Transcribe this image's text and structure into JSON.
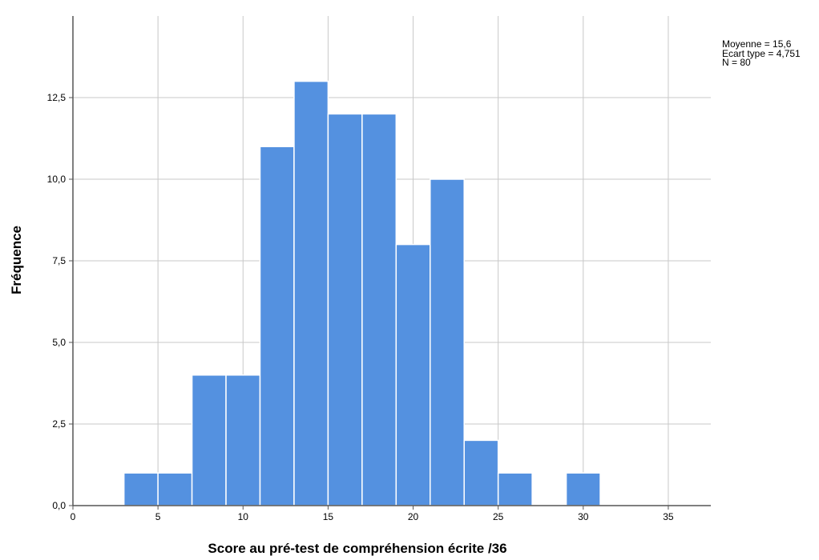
{
  "chart_data": {
    "type": "bar",
    "subtype": "histogram",
    "xlabel": "Score au pré-test de compréhension écrite /36",
    "ylabel": "Fréquence",
    "xlim": [
      0,
      37.5
    ],
    "ylim": [
      0,
      15
    ],
    "x_ticks": [
      0,
      5,
      10,
      15,
      20,
      25,
      30,
      35
    ],
    "x_tick_labels": [
      "0",
      "5",
      "10",
      "15",
      "20",
      "25",
      "30",
      "35"
    ],
    "y_ticks": [
      0,
      2.5,
      5,
      7.5,
      10,
      12.5
    ],
    "y_tick_labels": [
      "0,0",
      "2,5",
      "5,0",
      "7,5",
      "10,0",
      "12,5"
    ],
    "bin_width": 2,
    "bins": [
      {
        "start": 3,
        "end": 5,
        "count": 1
      },
      {
        "start": 5,
        "end": 7,
        "count": 1
      },
      {
        "start": 7,
        "end": 9,
        "count": 4
      },
      {
        "start": 9,
        "end": 11,
        "count": 4
      },
      {
        "start": 11,
        "end": 13,
        "count": 11
      },
      {
        "start": 13,
        "end": 15,
        "count": 13
      },
      {
        "start": 15,
        "end": 17,
        "count": 12
      },
      {
        "start": 17,
        "end": 19,
        "count": 12
      },
      {
        "start": 19,
        "end": 21,
        "count": 8
      },
      {
        "start": 21,
        "end": 23,
        "count": 10
      },
      {
        "start": 23,
        "end": 25,
        "count": 2
      },
      {
        "start": 25,
        "end": 27,
        "count": 1
      },
      {
        "start": 29,
        "end": 31,
        "count": 1
      }
    ],
    "grid": true,
    "bar_color": "#5491e0",
    "bar_edge_color": "#ffffff",
    "grid_color": "#c8c8c8",
    "stats": {
      "mean": "Moyenne = 15,6",
      "std": "Ecart type = 4,751",
      "n": "N = 80"
    }
  }
}
